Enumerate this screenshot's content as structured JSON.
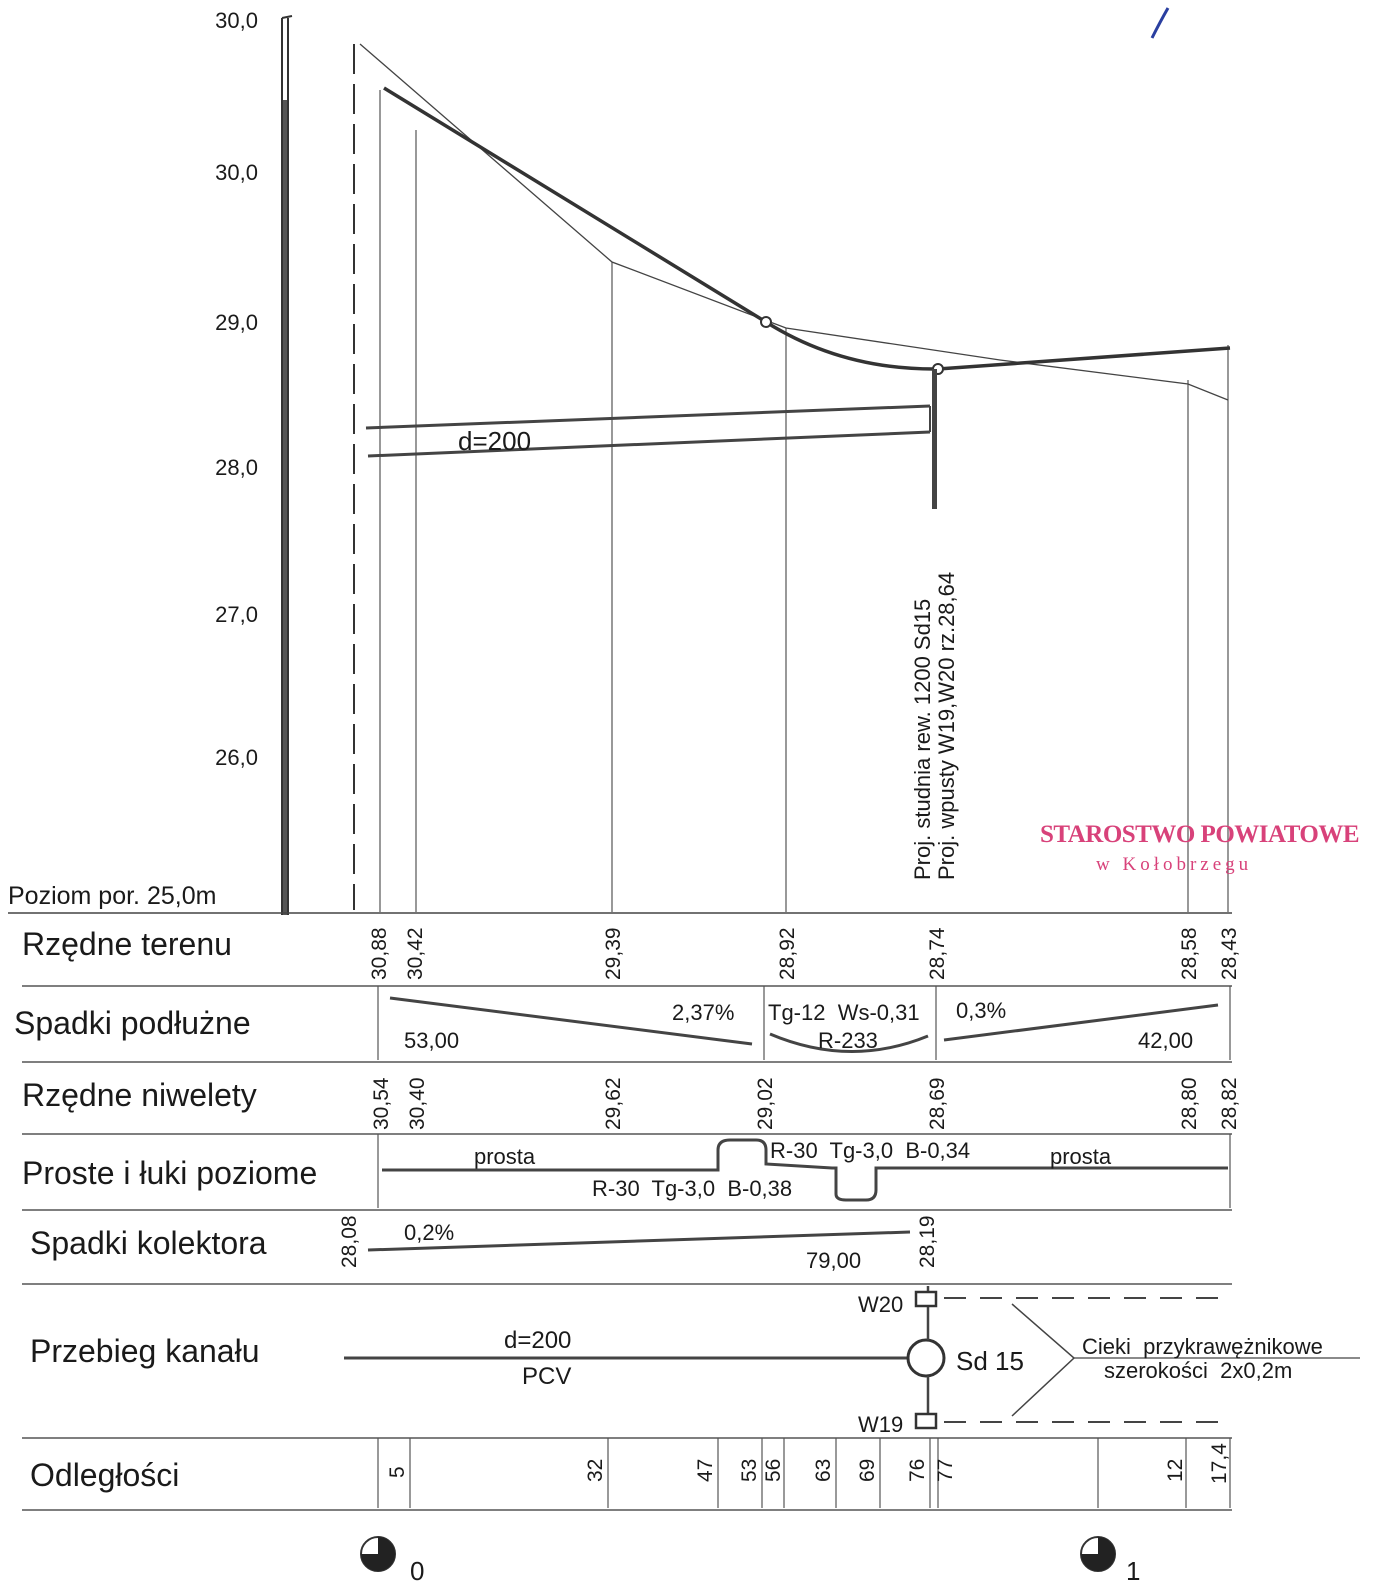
{
  "axis": {
    "labels": [
      "30,0",
      "30,0",
      "29,0",
      "28,0",
      "27,0",
      "26,0"
    ],
    "baseline": "Poziom por. 25,0m"
  },
  "profile": {
    "pipe_label": "d=200",
    "manhole_note_line1": "Proj. studnia rew. 1200 Sd15",
    "manhole_note_line2": "Proj. wpusty W19,W20 rz.28,64"
  },
  "stamp": {
    "line1": "STAROSTWO POWIATOWE",
    "line2": "w Kołobrzegu"
  },
  "rows": {
    "rzedne_terenu": {
      "label": "Rzędne  terenu",
      "values": [
        "30,88",
        "30,42",
        "29,39",
        "28,92",
        "28,74",
        "28,58",
        "28,43"
      ]
    },
    "spadki_podluzne": {
      "label": "Spadki  podłużne",
      "slope_left": "2,37%",
      "length_left": "53,00",
      "curve_params": "Tg-12  Ws-0,31",
      "curve_radius": "R-233",
      "slope_right": "0,3%",
      "length_right": "42,00"
    },
    "rzedne_niwelety": {
      "label": "Rzędne  niwelety",
      "values": [
        "30,54",
        "30,40",
        "29,62",
        "29,02",
        "28,69",
        "28,80",
        "28,82"
      ]
    },
    "proste_luki": {
      "label": "Proste i łuki poziome",
      "straight_left": "prosta",
      "straight_right": "prosta",
      "arc_upper": "R-30  Tg-3,0  B-0,34",
      "arc_lower": "R-30  Tg-3,0  B-0,38"
    },
    "spadki_kolektora": {
      "label": "Spadki  kolektora",
      "start": "28,08",
      "slope": "0,2%",
      "length": "79,00",
      "end": "28,19"
    },
    "przebieg_kanalu": {
      "label": "Przebieg  kanału",
      "pipe": "d=200",
      "material": "PCV",
      "inlet_top": "W20",
      "inlet_bottom": "W19",
      "manhole": "Sd 15",
      "gutter_line1": "Cieki  przykrawężnikowe",
      "gutter_line2": "szerokości  2x0,2m"
    },
    "odleglosci": {
      "label": "Odległości",
      "values": [
        "5",
        "32",
        "47",
        "53",
        "56",
        "63",
        "69",
        "76",
        "77",
        "12",
        "17,4"
      ]
    }
  },
  "benchmarks": [
    "0",
    "1"
  ]
}
